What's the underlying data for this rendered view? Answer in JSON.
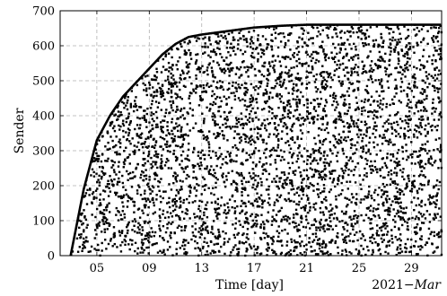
{
  "chart_data": {
    "type": "scatter",
    "xlabel": "Time [day]",
    "ylabel": "Sender",
    "corner_label_prefix": "2021−",
    "corner_label_month": "Mar",
    "x_tick_values": [
      5,
      9,
      13,
      17,
      21,
      25,
      29
    ],
    "x_tick_labels": [
      "05",
      "09",
      "13",
      "17",
      "21",
      "25",
      "29"
    ],
    "xlim": [
      2.2,
      31.3
    ],
    "ylim": [
      0,
      700
    ],
    "y_ticks": [
      0,
      100,
      200,
      300,
      400,
      500,
      600,
      700
    ],
    "grid": true,
    "legend": "none",
    "marker_color": "#000000",
    "frontier": {
      "description_units": "day of March vs sender index",
      "start_day": 3.0,
      "max_sender": 660,
      "points": [
        [
          3.0,
          0
        ],
        [
          4.0,
          190
        ],
        [
          5.0,
          330
        ],
        [
          6.0,
          400
        ],
        [
          7.0,
          455
        ],
        [
          8.0,
          495
        ],
        [
          9.0,
          535
        ],
        [
          10.0,
          575
        ],
        [
          11.0,
          605
        ],
        [
          12.0,
          625
        ],
        [
          13.0,
          632
        ],
        [
          15.0,
          642
        ],
        [
          17.0,
          652
        ],
        [
          19.0,
          657
        ],
        [
          21.0,
          660
        ],
        [
          31.3,
          660
        ]
      ]
    },
    "point_count": 4200
  }
}
